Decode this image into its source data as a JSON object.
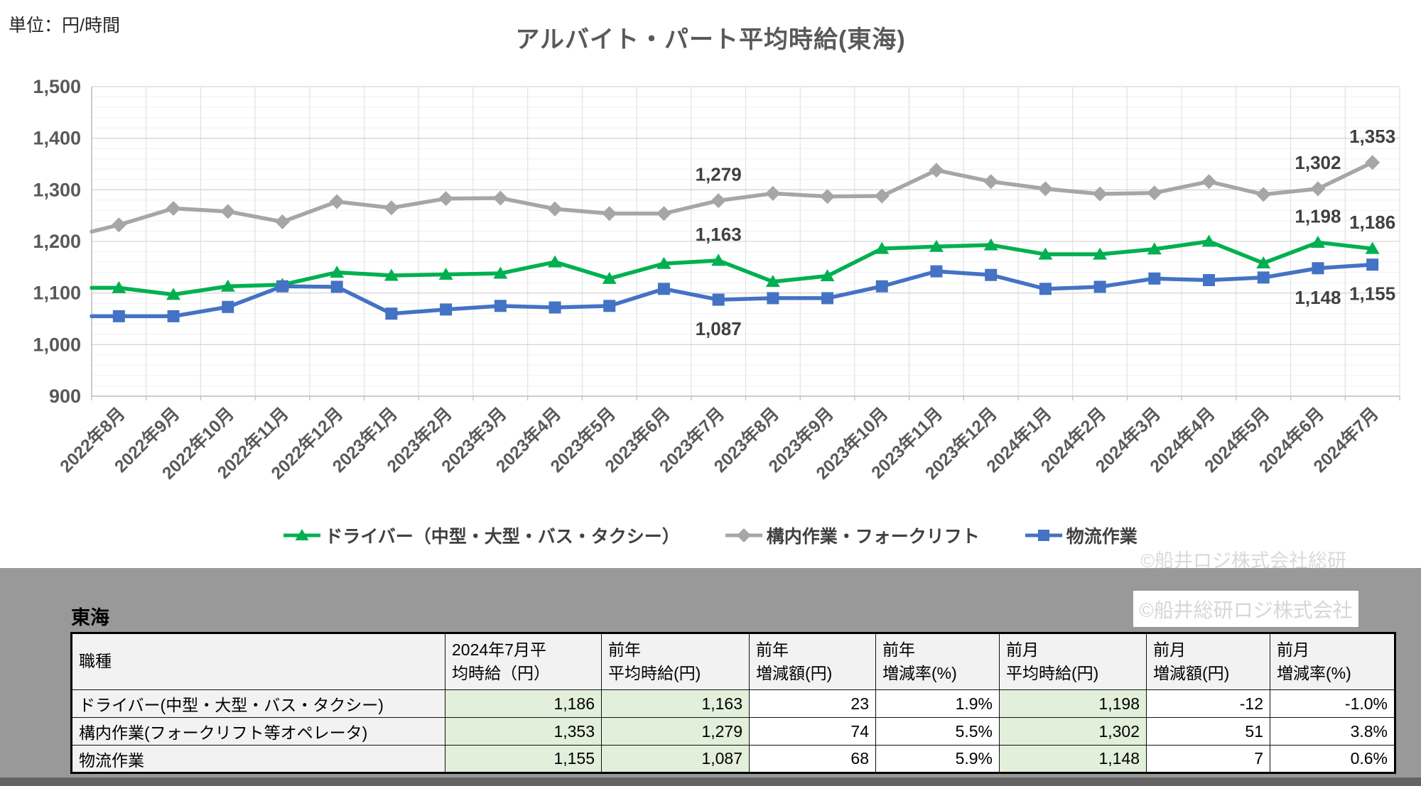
{
  "unit_label": "単位：円/時間",
  "title": "アルバイト・パート平均時給(東海)",
  "chart_watermark": "©船井ロジ株式会社総研",
  "table_watermark": "©船井総研ロジ株式会社",
  "region_label": "東海",
  "colors": {
    "series_driver": "#00b050",
    "series_kounai": "#a6a6a6",
    "series_butsuryu": "#4472c4",
    "axis_text": "#595959",
    "point_label_text": "#404040",
    "negative_value": "#ff0000",
    "header_orange": "#fbe5cd",
    "cell_green": "#e2efda",
    "band_gray": "#999999"
  },
  "chart_data": {
    "type": "line",
    "title": "アルバイト・パート平均時給(東海)",
    "ylabel": "円/時間",
    "ylim": [
      900,
      1500
    ],
    "y_major_step": 100,
    "y_minor_step": 20,
    "y_tick_labels": [
      "900",
      "1,000",
      "1,100",
      "1,200",
      "1,300",
      "1,400",
      "1,500"
    ],
    "grid": true,
    "legend_position": "bottom",
    "categories": [
      "2022年8月",
      "2022年9月",
      "2022年10月",
      "2022年11月",
      "2022年12月",
      "2023年1月",
      "2023年2月",
      "2023年3月",
      "2023年4月",
      "2023年5月",
      "2023年6月",
      "2023年7月",
      "2023年8月",
      "2023年9月",
      "2023年10月",
      "2023年11月",
      "2023年12月",
      "2024年1月",
      "2024年2月",
      "2024年3月",
      "2024年4月",
      "2024年5月",
      "2024年6月",
      "2024年7月"
    ],
    "series": [
      {
        "name": "ドライバー（中型・大型・バス・タクシー）",
        "color": "#00b050",
        "marker": "triangle",
        "edge_value": 1110,
        "values": [
          1110,
          1097,
          1113,
          1116,
          1140,
          1134,
          1136,
          1138,
          1160,
          1128,
          1157,
          1163,
          1122,
          1133,
          1186,
          1190,
          1193,
          1175,
          1175,
          1185,
          1200,
          1158,
          1198,
          1186
        ],
        "point_labels": [
          {
            "index": 11,
            "text": "1,163",
            "position": "above"
          },
          {
            "index": 22,
            "text": "1,198",
            "position": "above"
          },
          {
            "index": 23,
            "text": "1,186",
            "position": "above"
          }
        ]
      },
      {
        "name": "構内作業・フォークリフト",
        "color": "#a6a6a6",
        "marker": "diamond",
        "edge_value": 1219,
        "values": [
          1232,
          1264,
          1258,
          1238,
          1277,
          1265,
          1283,
          1284,
          1263,
          1254,
          1254,
          1279,
          1293,
          1287,
          1288,
          1338,
          1316,
          1302,
          1292,
          1294,
          1316,
          1291,
          1302,
          1353
        ],
        "point_labels": [
          {
            "index": 11,
            "text": "1,279",
            "position": "above"
          },
          {
            "index": 22,
            "text": "1,302",
            "position": "above"
          },
          {
            "index": 23,
            "text": "1,353",
            "position": "above"
          }
        ]
      },
      {
        "name": "物流作業",
        "color": "#4472c4",
        "marker": "square",
        "edge_value": 1055,
        "values": [
          1055,
          1055,
          1073,
          1113,
          1112,
          1060,
          1068,
          1075,
          1072,
          1075,
          1108,
          1087,
          1090,
          1090,
          1113,
          1142,
          1135,
          1108,
          1112,
          1128,
          1125,
          1130,
          1148,
          1155
        ],
        "point_labels": [
          {
            "index": 11,
            "text": "1,087",
            "position": "below"
          },
          {
            "index": 22,
            "text": "1,148",
            "position": "below"
          },
          {
            "index": 23,
            "text": "1,155",
            "position": "below"
          }
        ]
      }
    ]
  },
  "table": {
    "header": [
      {
        "l1": "職種",
        "l2": ""
      },
      {
        "l1": "2024年7月平",
        "l2": "均時給（円）"
      },
      {
        "l1": "前年",
        "l2": "平均時給(円)"
      },
      {
        "l1": "前年",
        "l2": "増減額(円)"
      },
      {
        "l1": "前年",
        "l2": "増減率(%)"
      },
      {
        "l1": "前月",
        "l2": "平均時給(円)"
      },
      {
        "l1": "前月",
        "l2": "増減額(円)"
      },
      {
        "l1": "前月",
        "l2": "増減率(%)"
      }
    ],
    "rows": [
      {
        "cells": [
          "ドライバー(中型・大型・バス・タクシー)",
          "1,186",
          "1,163",
          "23",
          "1.9%",
          "1,198",
          "-12",
          "-1.0%"
        ]
      },
      {
        "cells": [
          "構内作業(フォークリフト等オペレータ)",
          "1,353",
          "1,279",
          "74",
          "5.5%",
          "1,302",
          "51",
          "3.8%"
        ]
      },
      {
        "cells": [
          "物流作業",
          "1,155",
          "1,087",
          "68",
          "5.9%",
          "1,148",
          "7",
          "0.6%"
        ]
      }
    ]
  }
}
